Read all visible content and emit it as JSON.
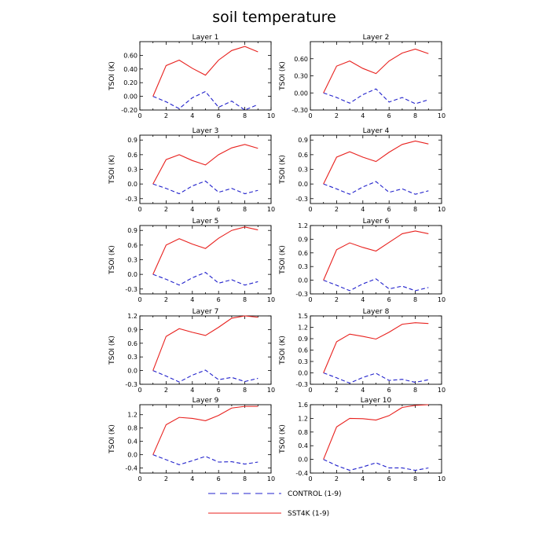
{
  "title": "soil temperature",
  "chart_data": {
    "type": "line",
    "title": "soil temperature",
    "xlim": [
      0,
      10
    ],
    "x_ticks": [
      0,
      2,
      4,
      6,
      8,
      10
    ],
    "ylabel": "TSOI  (K)",
    "x": [
      1,
      2,
      3,
      4,
      5,
      6,
      7,
      8,
      9
    ],
    "legend": [
      {
        "name": "CONTROL (1-9)",
        "color": "#2222cc",
        "style": "dashed"
      },
      {
        "name": "SST4K (1-9)",
        "color": "#e8211e",
        "style": "solid"
      }
    ],
    "panels": [
      {
        "name": "Layer 1",
        "ylim": [
          -0.2,
          0.8
        ],
        "yticks": [
          "-0.20",
          "0.00",
          "0.20",
          "0.40",
          "0.60"
        ],
        "series": [
          {
            "name": "CONTROL (1-9)",
            "values": [
              0.0,
              -0.08,
              -0.18,
              -0.02,
              0.07,
              -0.16,
              -0.07,
              -0.2,
              -0.12
            ]
          },
          {
            "name": "SST4K (1-9)",
            "values": [
              0.0,
              0.45,
              0.53,
              0.41,
              0.31,
              0.53,
              0.67,
              0.73,
              0.65
            ]
          }
        ]
      },
      {
        "name": "Layer 2",
        "ylim": [
          -0.3,
          0.9
        ],
        "yticks": [
          "-0.30",
          "0.00",
          "0.30",
          "0.60"
        ],
        "series": [
          {
            "name": "CONTROL (1-9)",
            "values": [
              0.0,
              -0.08,
              -0.18,
              -0.03,
              0.07,
              -0.16,
              -0.08,
              -0.19,
              -0.12
            ]
          },
          {
            "name": "SST4K (1-9)",
            "values": [
              0.0,
              0.47,
              0.56,
              0.43,
              0.34,
              0.56,
              0.7,
              0.77,
              0.69
            ]
          }
        ]
      },
      {
        "name": "Layer 3",
        "ylim": [
          -0.4,
          1.0
        ],
        "yticks": [
          "-0.3",
          "0.0",
          "0.3",
          "0.6",
          "0.9"
        ],
        "series": [
          {
            "name": "CONTROL (1-9)",
            "values": [
              0.0,
              -0.09,
              -0.2,
              -0.04,
              0.06,
              -0.17,
              -0.09,
              -0.2,
              -0.13
            ]
          },
          {
            "name": "SST4K (1-9)",
            "values": [
              0.0,
              0.5,
              0.6,
              0.48,
              0.39,
              0.6,
              0.74,
              0.81,
              0.73
            ]
          }
        ]
      },
      {
        "name": "Layer 4",
        "ylim": [
          -0.4,
          1.0
        ],
        "yticks": [
          "-0.3",
          "0.0",
          "0.3",
          "0.6",
          "0.9"
        ],
        "series": [
          {
            "name": "CONTROL (1-9)",
            "values": [
              0.0,
              -0.1,
              -0.21,
              -0.06,
              0.05,
              -0.17,
              -0.1,
              -0.21,
              -0.14
            ]
          },
          {
            "name": "SST4K (1-9)",
            "values": [
              0.0,
              0.55,
              0.66,
              0.55,
              0.46,
              0.65,
              0.81,
              0.88,
              0.82
            ]
          }
        ]
      },
      {
        "name": "Layer 5",
        "ylim": [
          -0.4,
          1.0
        ],
        "yticks": [
          "-0.3",
          "0.0",
          "0.3",
          "0.6",
          "0.9"
        ],
        "series": [
          {
            "name": "CONTROL (1-9)",
            "values": [
              0.0,
              -0.1,
              -0.22,
              -0.07,
              0.04,
              -0.18,
              -0.11,
              -0.22,
              -0.15
            ]
          },
          {
            "name": "SST4K (1-9)",
            "values": [
              0.0,
              0.6,
              0.73,
              0.62,
              0.53,
              0.74,
              0.9,
              0.97,
              0.91
            ]
          }
        ]
      },
      {
        "name": "Layer 6",
        "ylim": [
          -0.3,
          1.2
        ],
        "yticks": [
          "-0.3",
          "0.0",
          "0.3",
          "0.6",
          "0.9",
          "1.2"
        ],
        "series": [
          {
            "name": "CONTROL (1-9)",
            "values": [
              0.0,
              -0.11,
              -0.23,
              -0.08,
              0.03,
              -0.19,
              -0.13,
              -0.23,
              -0.16
            ]
          },
          {
            "name": "SST4K (1-9)",
            "values": [
              0.0,
              0.67,
              0.82,
              0.72,
              0.64,
              0.83,
              1.02,
              1.08,
              1.02
            ]
          }
        ]
      },
      {
        "name": "Layer 7",
        "ylim": [
          -0.3,
          1.2
        ],
        "yticks": [
          "-0.3",
          "0.0",
          "0.3",
          "0.6",
          "0.9",
          "1.2"
        ],
        "series": [
          {
            "name": "CONTROL (1-9)",
            "values": [
              0.0,
              -0.12,
              -0.25,
              -0.1,
              0.01,
              -0.2,
              -0.15,
              -0.24,
              -0.17
            ]
          },
          {
            "name": "SST4K (1-9)",
            "values": [
              0.0,
              0.75,
              0.92,
              0.84,
              0.77,
              0.95,
              1.15,
              1.2,
              1.17
            ]
          }
        ]
      },
      {
        "name": "Layer 8",
        "ylim": [
          -0.3,
          1.5
        ],
        "yticks": [
          "-0.3",
          "0.0",
          "0.3",
          "0.6",
          "0.9",
          "1.2",
          "1.5"
        ],
        "series": [
          {
            "name": "CONTROL (1-9)",
            "values": [
              0.0,
              -0.13,
              -0.27,
              -0.12,
              -0.01,
              -0.2,
              -0.17,
              -0.25,
              -0.18
            ]
          },
          {
            "name": "SST4K (1-9)",
            "values": [
              0.0,
              0.82,
              1.02,
              0.96,
              0.89,
              1.07,
              1.28,
              1.32,
              1.3
            ]
          }
        ]
      },
      {
        "name": "Layer 9",
        "ylim": [
          -0.55,
          1.5
        ],
        "yticks": [
          "-0.4",
          "0.0",
          "0.4",
          "0.8",
          "1.2"
        ],
        "series": [
          {
            "name": "CONTROL (1-9)",
            "values": [
              0.0,
              -0.15,
              -0.3,
              -0.18,
              -0.05,
              -0.22,
              -0.21,
              -0.28,
              -0.22
            ]
          },
          {
            "name": "SST4K (1-9)",
            "values": [
              0.0,
              0.9,
              1.12,
              1.09,
              1.02,
              1.18,
              1.4,
              1.45,
              1.45
            ]
          }
        ]
      },
      {
        "name": "Layer 10",
        "ylim": [
          -0.4,
          1.6
        ],
        "yticks": [
          "-0.4",
          "0.0",
          "0.4",
          "0.8",
          "1.2",
          "1.6"
        ],
        "series": [
          {
            "name": "CONTROL (1-9)",
            "values": [
              0.0,
              -0.18,
              -0.32,
              -0.22,
              -0.1,
              -0.25,
              -0.25,
              -0.32,
              -0.25
            ]
          },
          {
            "name": "SST4K (1-9)",
            "values": [
              0.0,
              0.95,
              1.2,
              1.19,
              1.15,
              1.28,
              1.52,
              1.58,
              1.6
            ]
          }
        ]
      }
    ]
  }
}
